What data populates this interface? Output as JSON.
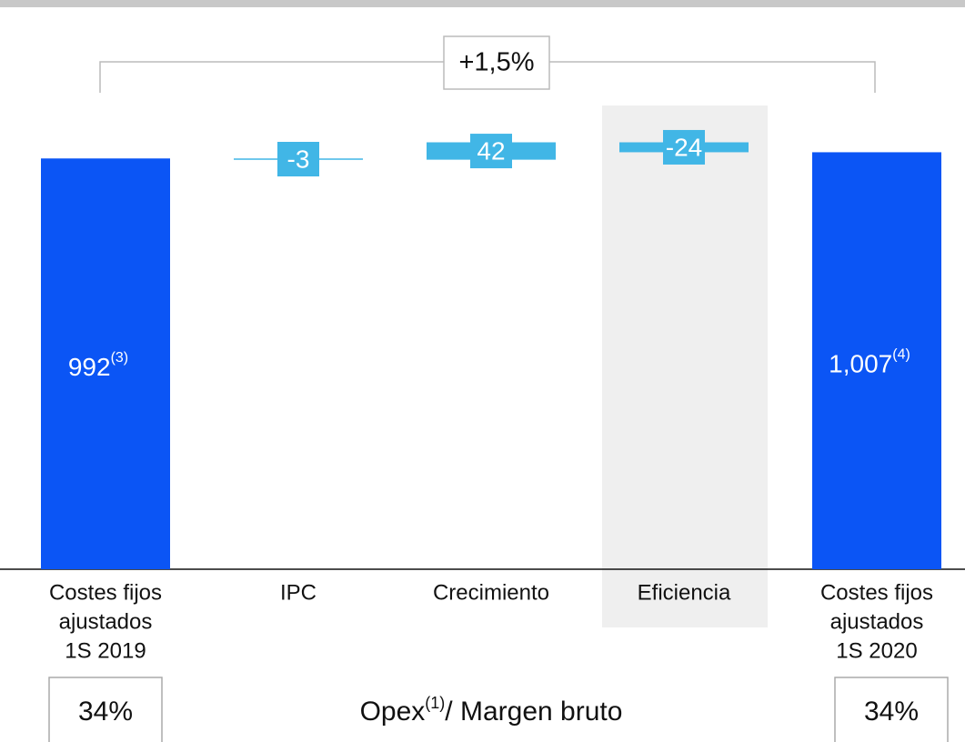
{
  "chart_data": {
    "type": "waterfall",
    "categories": [
      [
        "Costes fijos",
        "ajustados",
        "1S 2019"
      ],
      [
        "IPC"
      ],
      [
        "Crecimiento"
      ],
      [
        "Eficiencia"
      ],
      [
        "Costes fijos",
        "ajustados",
        "1S 2020"
      ]
    ],
    "values": [
      992,
      -3,
      42,
      -24,
      1007
    ],
    "value_labels": [
      "992",
      "-3",
      "42",
      "-24",
      "1,007"
    ],
    "value_notes": [
      "(3)",
      null,
      null,
      null,
      "(4)"
    ],
    "totals": [
      true,
      false,
      false,
      false,
      true
    ],
    "total_color": "#0b55f5",
    "delta_color": "#41b6e6",
    "highlight": 3,
    "ylim": [
      0,
      1300
    ],
    "annotation": "+1,5%",
    "ratio_title": [
      "Opex",
      "(1)",
      "/ Margen bruto"
    ],
    "ratio_labels": [
      "34%",
      "34%"
    ]
  }
}
